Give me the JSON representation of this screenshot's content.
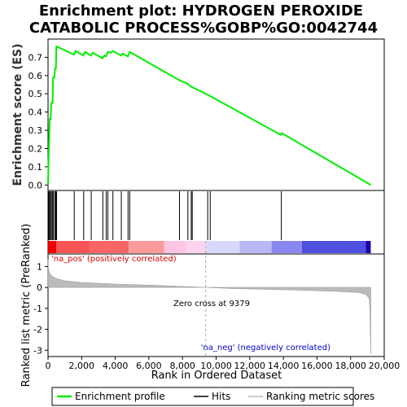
{
  "chart_data": {
    "type": "line",
    "title_lines": [
      "Enrichment plot: HYDROGEN PEROXIDE",
      "CATABOLIC PROCESS%GOBP%GO:0042744"
    ],
    "es_panel": {
      "ylabel": "Enrichment score (ES)",
      "ylim": [
        -0.03,
        0.8
      ],
      "yticks": [
        "0.0",
        "0.1",
        "0.2",
        "0.3",
        "0.4",
        "0.5",
        "0.6",
        "0.7"
      ],
      "color": "#00ee00",
      "points": [
        [
          0,
          0.0
        ],
        [
          30,
          0.12
        ],
        [
          70,
          0.25
        ],
        [
          100,
          0.36
        ],
        [
          150,
          0.36
        ],
        [
          200,
          0.45
        ],
        [
          270,
          0.45
        ],
        [
          300,
          0.59
        ],
        [
          380,
          0.59
        ],
        [
          420,
          0.64
        ],
        [
          470,
          0.64
        ],
        [
          500,
          0.76
        ],
        [
          1550,
          0.715
        ],
        [
          1650,
          0.735
        ],
        [
          2100,
          0.71
        ],
        [
          2200,
          0.73
        ],
        [
          2550,
          0.71
        ],
        [
          2650,
          0.725
        ],
        [
          3250,
          0.695
        ],
        [
          3350,
          0.71
        ],
        [
          3450,
          0.705
        ],
        [
          3550,
          0.73
        ],
        [
          3750,
          0.725
        ],
        [
          3850,
          0.735
        ],
        [
          4350,
          0.71
        ],
        [
          4450,
          0.72
        ],
        [
          4750,
          0.705
        ],
        [
          4850,
          0.73
        ],
        [
          7800,
          0.575
        ],
        [
          8300,
          0.555
        ],
        [
          8500,
          0.54
        ],
        [
          9600,
          0.49
        ],
        [
          13850,
          0.275
        ],
        [
          13900,
          0.285
        ],
        [
          19200,
          0.0
        ]
      ]
    },
    "hits": [
      40,
      90,
      140,
      200,
      260,
      320,
      400,
      460,
      510,
      1560,
      2120,
      2570,
      3260,
      3460,
      3560,
      3860,
      4360,
      4760,
      4860,
      7820,
      8320,
      8520,
      8580,
      9500,
      9650,
      13880
    ],
    "metric_panel": {
      "ylabel": "Ranked list metric (PreRanked)",
      "ylim": [
        -3.3,
        1.6
      ],
      "yticks": [
        "1",
        "0",
        "-1",
        "-2",
        "-3"
      ],
      "curve": [
        [
          0,
          1.35
        ],
        [
          20,
          0.9
        ],
        [
          100,
          0.65
        ],
        [
          300,
          0.5
        ],
        [
          600,
          0.4
        ],
        [
          1000,
          0.32
        ],
        [
          2000,
          0.24
        ],
        [
          4000,
          0.16
        ],
        [
          6000,
          0.11
        ],
        [
          8000,
          0.05
        ],
        [
          9379,
          0.0
        ],
        [
          11000,
          -0.05
        ],
        [
          13000,
          -0.09
        ],
        [
          15000,
          -0.13
        ],
        [
          17000,
          -0.18
        ],
        [
          18500,
          -0.24
        ],
        [
          18900,
          -0.32
        ],
        [
          19100,
          -0.5
        ],
        [
          19150,
          -1.0
        ],
        [
          19200,
          -3.2
        ]
      ],
      "fill_color": "#bbbbbb",
      "zero_cross_label": "Zero cross at 9379",
      "pos_label": "'na_pos' (positively correlated)",
      "neg_label": "'na_neg' (negatively correlated)",
      "pos_label_color": "#dd0000",
      "neg_label_color": "#0000cc"
    },
    "gradient": [
      [
        0,
        500,
        "#ee0000"
      ],
      [
        500,
        2500,
        "#f75555"
      ],
      [
        2500,
        4800,
        "#fa6666"
      ],
      [
        4800,
        6900,
        "#fb9a9a"
      ],
      [
        6900,
        8200,
        "#fdc4e4"
      ],
      [
        8200,
        9400,
        "#fdd4ee"
      ],
      [
        9400,
        11400,
        "#d8d8fb"
      ],
      [
        11400,
        13300,
        "#b8b8f4"
      ],
      [
        13300,
        15100,
        "#8888f0"
      ],
      [
        15100,
        18900,
        "#5050e0"
      ],
      [
        18900,
        19200,
        "#1a00b0"
      ]
    ],
    "x_axis": {
      "label": "Rank in Ordered Dataset",
      "range": [
        0,
        20000
      ],
      "ticks": [
        "0",
        "2,000",
        "4,000",
        "6,000",
        "8,000",
        "10,000",
        "12,000",
        "14,000",
        "16,000",
        "18,000",
        "20,000"
      ]
    },
    "legend": [
      {
        "label": "Enrichment profile",
        "color": "#00ee00",
        "kind": "line-green"
      },
      {
        "label": "Hits",
        "color": "#000000",
        "kind": "line-black"
      },
      {
        "label": "Ranking metric scores",
        "color": "#bbbbbb",
        "kind": "line-gray"
      }
    ]
  }
}
